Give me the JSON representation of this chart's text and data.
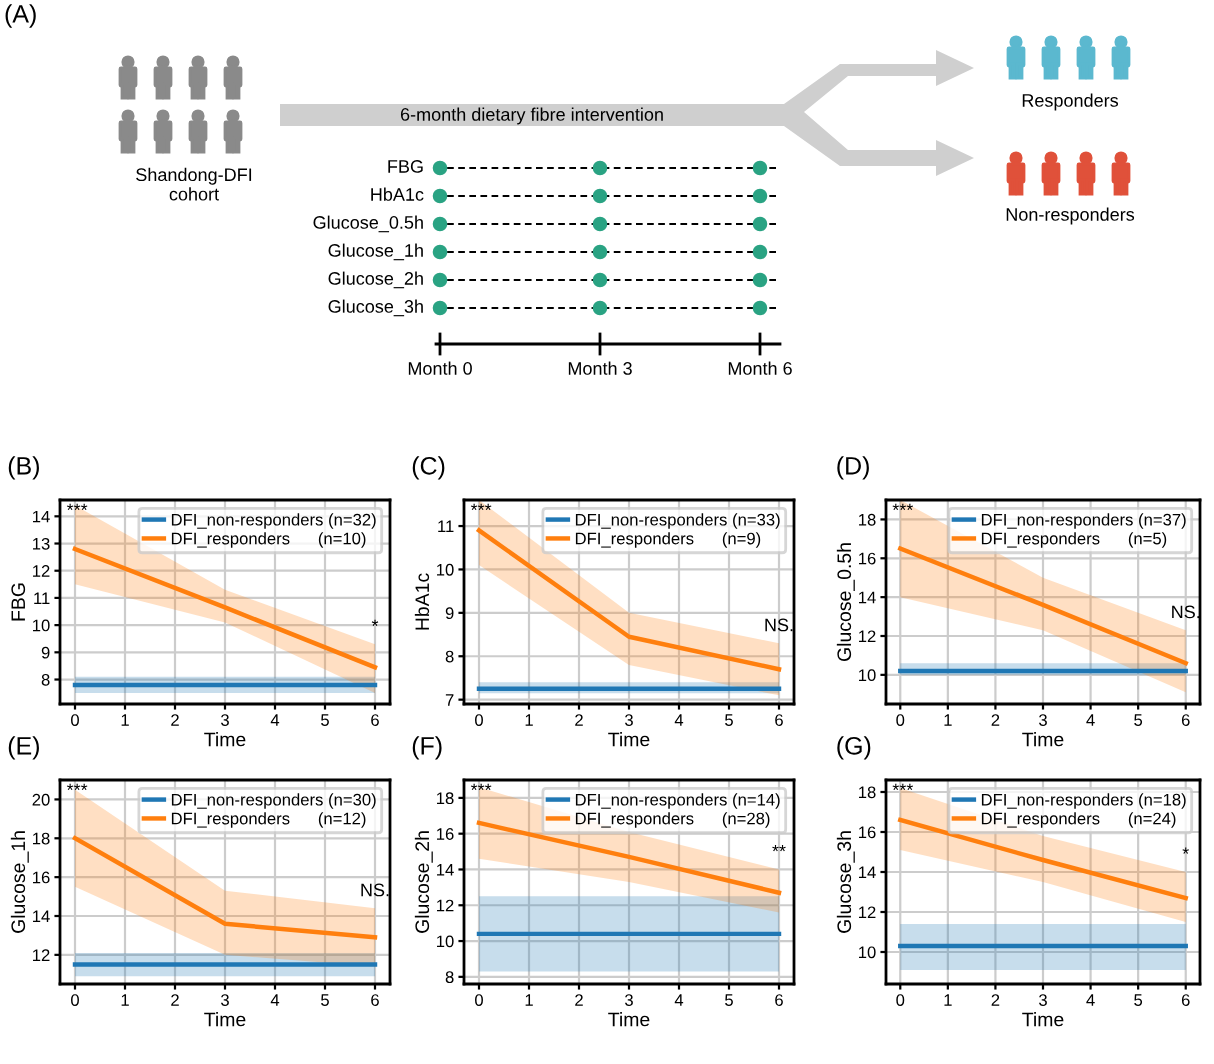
{
  "chart_data": [
    {
      "type": "other",
      "title": "(A)",
      "annotations": [
        "Shandong-DFI\ncohort",
        "6-month dietary fibre intervention",
        "Responders",
        "Non-responders",
        "FBG",
        "HbA1c",
        "Glucose_0.5h",
        "Glucose_1h",
        "Glucose_2h",
        "Glucose_3h",
        "Month 0",
        "Month 3",
        "Month 6"
      ]
    },
    {
      "type": "line",
      "title": "(B)",
      "xlabel": "Time",
      "ylabel": "FBG",
      "xlim": [
        -0.3,
        6.3
      ],
      "xticks": [
        0,
        1,
        2,
        3,
        4,
        5,
        6
      ],
      "ylim": [
        7.1,
        14.6
      ],
      "yticks": [
        8,
        9,
        10,
        11,
        12,
        13,
        14
      ],
      "grid": true,
      "legend": "top right",
      "series": [
        {
          "name": "DFI_non-responders (n=32)",
          "color": "#1f77b4",
          "x": [
            0,
            3,
            6
          ],
          "values": [
            7.8,
            7.8,
            7.8
          ],
          "lower": [
            7.5,
            7.5,
            7.5
          ],
          "upper": [
            8.1,
            8.1,
            8.1
          ]
        },
        {
          "name": "DFI_responders      (n=10)",
          "color": "#ff7f0e",
          "x": [
            0,
            3,
            6
          ],
          "values": [
            12.8,
            10.65,
            8.45
          ],
          "lower": [
            11.5,
            10.1,
            7.5
          ],
          "upper": [
            14.4,
            11.3,
            9.3
          ]
        }
      ],
      "annotations": [
        "***",
        "*"
      ]
    },
    {
      "type": "line",
      "title": "(C)",
      "xlabel": "Time",
      "ylabel": "HbA1c",
      "xlim": [
        -0.3,
        6.3
      ],
      "xticks": [
        0,
        1,
        2,
        3,
        4,
        5,
        6
      ],
      "ylim": [
        6.9,
        11.6
      ],
      "yticks": [
        7,
        8,
        9,
        10,
        11
      ],
      "grid": true,
      "legend": "top right",
      "series": [
        {
          "name": "DFI_non-responders (n=33)",
          "color": "#1f77b4",
          "x": [
            0,
            3,
            6
          ],
          "values": [
            7.25,
            7.25,
            7.25
          ],
          "lower": [
            7.15,
            7.15,
            7.15
          ],
          "upper": [
            7.4,
            7.4,
            7.4
          ]
        },
        {
          "name": "DFI_responders      (n=9)",
          "color": "#ff7f0e",
          "x": [
            0,
            3,
            6
          ],
          "values": [
            10.9,
            8.45,
            7.7
          ],
          "lower": [
            10.1,
            7.8,
            7.1
          ],
          "upper": [
            11.6,
            9.0,
            8.3
          ]
        }
      ],
      "annotations": [
        "***",
        "NS."
      ]
    },
    {
      "type": "line",
      "title": "(D)",
      "xlabel": "Time",
      "ylabel": "Glucose_0.5h",
      "xlim": [
        -0.3,
        6.3
      ],
      "xticks": [
        0,
        1,
        2,
        3,
        4,
        5,
        6
      ],
      "ylim": [
        8.5,
        19.0
      ],
      "yticks": [
        10,
        12,
        14,
        16,
        18
      ],
      "grid": true,
      "legend": "top right",
      "series": [
        {
          "name": "DFI_non-responders (n=37)",
          "color": "#1f77b4",
          "x": [
            0,
            3,
            6
          ],
          "values": [
            10.2,
            10.2,
            10.2
          ],
          "lower": [
            10.0,
            10.0,
            10.0
          ],
          "upper": [
            10.6,
            10.6,
            10.6
          ]
        },
        {
          "name": "DFI_responders      (n=5)",
          "color": "#ff7f0e",
          "x": [
            0,
            3,
            6
          ],
          "values": [
            16.5,
            13.6,
            10.6
          ],
          "lower": [
            14.0,
            12.3,
            9.1
          ],
          "upper": [
            19.0,
            15.0,
            12.3
          ]
        }
      ],
      "annotations": [
        "***",
        "NS."
      ]
    },
    {
      "type": "line",
      "title": "(E)",
      "xlabel": "Time",
      "ylabel": "Glucose_1h",
      "xlim": [
        -0.3,
        6.3
      ],
      "xticks": [
        0,
        1,
        2,
        3,
        4,
        5,
        6
      ],
      "ylim": [
        10.5,
        21.0
      ],
      "yticks": [
        12,
        14,
        16,
        18,
        20
      ],
      "grid": true,
      "legend": "top right",
      "series": [
        {
          "name": "DFI_non-responders (n=30)",
          "color": "#1f77b4",
          "x": [
            0,
            3,
            6
          ],
          "values": [
            11.5,
            11.5,
            11.5
          ],
          "lower": [
            10.9,
            10.9,
            10.9
          ],
          "upper": [
            12.1,
            12.1,
            12.1
          ]
        },
        {
          "name": "DFI_responders      (n=12)",
          "color": "#ff7f0e",
          "x": [
            0,
            3,
            6
          ],
          "values": [
            18.0,
            13.6,
            12.9
          ],
          "lower": [
            15.5,
            12.0,
            11.4
          ],
          "upper": [
            20.5,
            15.3,
            14.4
          ]
        }
      ],
      "annotations": [
        "***",
        "NS."
      ]
    },
    {
      "type": "line",
      "title": "(F)",
      "xlabel": "Time",
      "ylabel": "Glucose_2h",
      "xlim": [
        -0.3,
        6.3
      ],
      "xticks": [
        0,
        1,
        2,
        3,
        4,
        5,
        6
      ],
      "ylim": [
        7.6,
        19.0
      ],
      "yticks": [
        8,
        10,
        12,
        14,
        16,
        18
      ],
      "grid": true,
      "legend": "top right",
      "series": [
        {
          "name": "DFI_non-responders (n=14)",
          "color": "#1f77b4",
          "x": [
            0,
            3,
            6
          ],
          "values": [
            10.4,
            10.4,
            10.4
          ],
          "lower": [
            8.3,
            8.3,
            8.3
          ],
          "upper": [
            12.5,
            12.5,
            12.5
          ]
        },
        {
          "name": "DFI_responders      (n=28)",
          "color": "#ff7f0e",
          "x": [
            0,
            3,
            6
          ],
          "values": [
            16.6,
            14.7,
            12.7
          ],
          "lower": [
            14.6,
            13.3,
            11.6
          ],
          "upper": [
            18.6,
            16.1,
            14.0
          ]
        }
      ],
      "annotations": [
        "***",
        "**"
      ]
    },
    {
      "type": "line",
      "title": "(G)",
      "xlabel": "Time",
      "ylabel": "Glucose_3h",
      "xlim": [
        -0.3,
        6.3
      ],
      "xticks": [
        0,
        1,
        2,
        3,
        4,
        5,
        6
      ],
      "ylim": [
        8.4,
        18.6
      ],
      "yticks": [
        10,
        12,
        14,
        16,
        18
      ],
      "grid": true,
      "legend": "top right",
      "series": [
        {
          "name": "DFI_non-responders (n=18)",
          "color": "#1f77b4",
          "x": [
            0,
            3,
            6
          ],
          "values": [
            10.3,
            10.3,
            10.3
          ],
          "lower": [
            9.1,
            9.1,
            9.1
          ],
          "upper": [
            11.4,
            11.4,
            11.4
          ]
        },
        {
          "name": "DFI_responders      (n=24)",
          "color": "#ff7f0e",
          "x": [
            0,
            3,
            6
          ],
          "values": [
            16.6,
            14.6,
            12.7
          ],
          "lower": [
            15.1,
            13.5,
            11.5
          ],
          "upper": [
            18.2,
            15.8,
            14.0
          ]
        }
      ],
      "annotations": [
        "***",
        "*"
      ]
    }
  ]
}
